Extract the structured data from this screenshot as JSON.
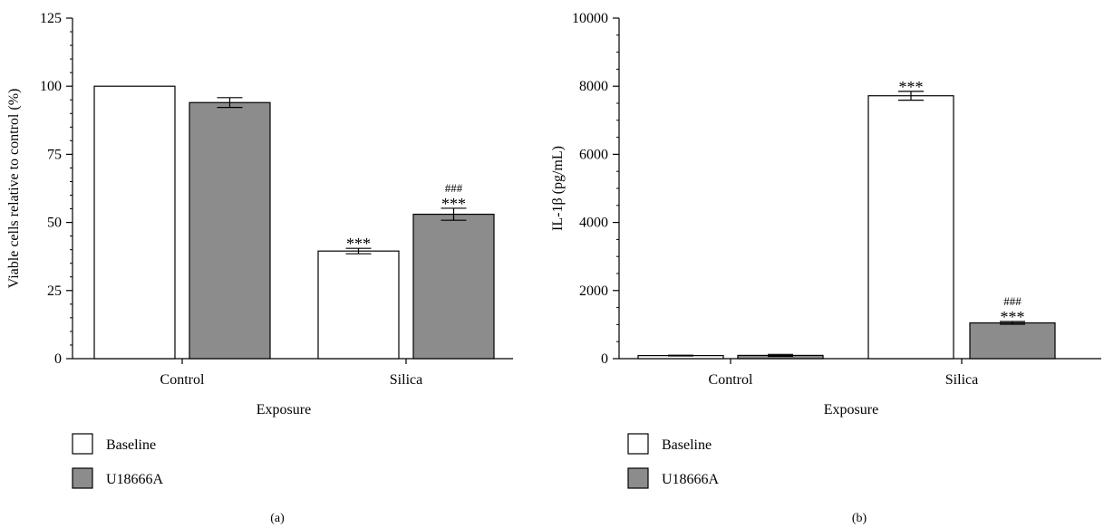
{
  "colors": {
    "baseline": "#ffffff",
    "treated": "#8c8c8c",
    "stroke": "#000000"
  },
  "chart_data": [
    {
      "type": "bar",
      "panel_label": "(a)",
      "categories": [
        "Control",
        "Silica"
      ],
      "xlabel": "Exposure",
      "ylabel": "Viable cells relative to control (%)",
      "ylim": [
        0,
        125
      ],
      "yticks": [
        "0",
        "25",
        "50",
        "75",
        "100",
        "125"
      ],
      "series": [
        {
          "name": "Baseline",
          "values": [
            100,
            39.5
          ],
          "errors": [
            0,
            1.0
          ]
        },
        {
          "name": "U18666A",
          "values": [
            94,
            53
          ],
          "errors": [
            1.8,
            2.2
          ]
        }
      ],
      "annotations": [
        {
          "series": 0,
          "category": 1,
          "lines": [
            "***"
          ]
        },
        {
          "series": 1,
          "category": 1,
          "lines": [
            "###",
            "***"
          ]
        }
      ]
    },
    {
      "type": "bar",
      "panel_label": "(b)",
      "categories": [
        "Control",
        "Silica"
      ],
      "xlabel": "Exposure",
      "ylabel": "IL-1β (pg/mL)",
      "ylim": [
        0,
        10000
      ],
      "yticks": [
        "0",
        "2000",
        "4000",
        "6000",
        "8000",
        "10000"
      ],
      "series": [
        {
          "name": "Baseline",
          "values": [
            90,
            7720
          ],
          "errors": [
            10,
            130
          ]
        },
        {
          "name": "U18666A",
          "values": [
            95,
            1050
          ],
          "errors": [
            30,
            40
          ]
        }
      ],
      "annotations": [
        {
          "series": 0,
          "category": 1,
          "lines": [
            "***"
          ]
        },
        {
          "series": 1,
          "category": 1,
          "lines": [
            "###",
            "***"
          ]
        }
      ]
    }
  ]
}
